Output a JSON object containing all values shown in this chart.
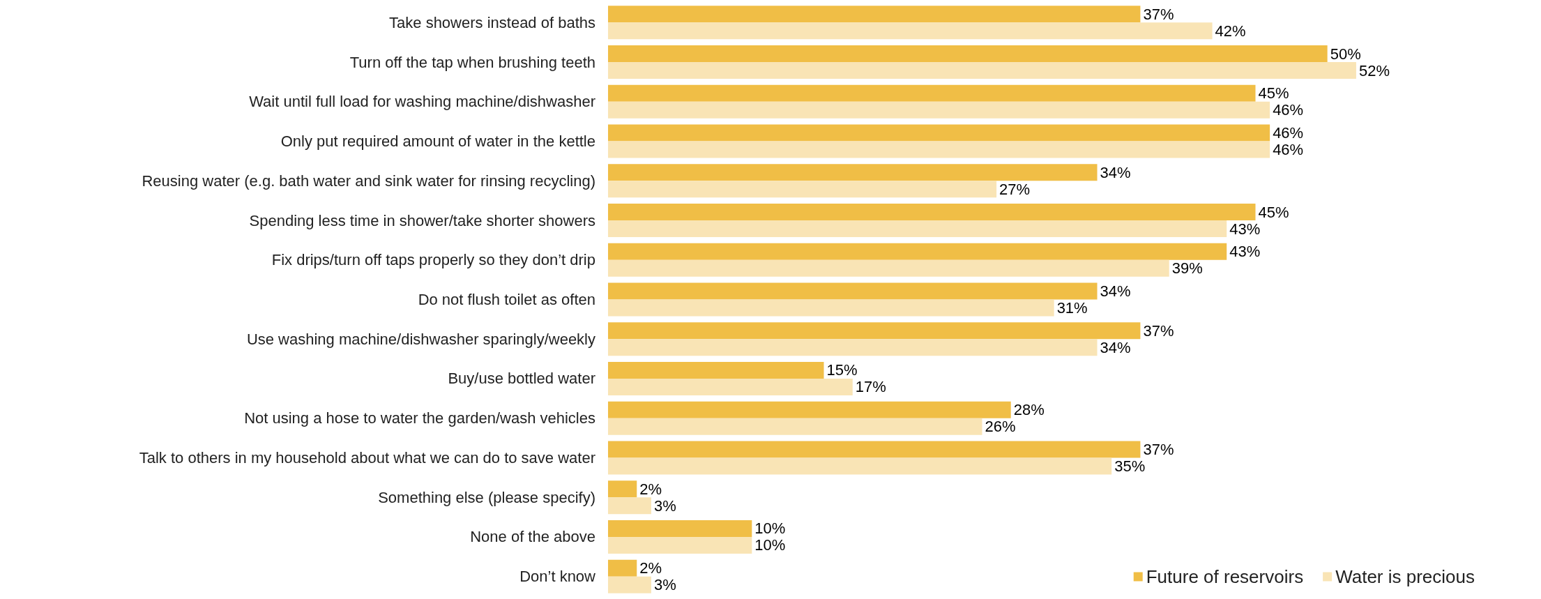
{
  "chart_data": {
    "type": "bar",
    "orientation": "horizontal",
    "categories": [
      "Take showers instead of baths",
      "Turn off the tap when brushing teeth",
      "Wait until full load for washing machine/dishwasher",
      "Only put required amount of water in the kettle",
      "Reusing water (e.g. bath water and sink water for rinsing recycling)",
      "Spending less time in shower/take shorter showers",
      "Fix drips/turn off taps properly so they don’t drip",
      "Do not flush toilet as often",
      "Use washing machine/dishwasher sparingly/weekly",
      "Buy/use bottled water",
      "Not using a hose to water the garden/wash vehicles",
      "Talk to others in my household about what we can do to save water",
      "Something else (please specify)",
      "None of the above",
      "Don’t know"
    ],
    "series": [
      {
        "name": "Future of reservoirs",
        "color": "#f0be46",
        "values": [
          37,
          50,
          45,
          46,
          34,
          45,
          43,
          34,
          37,
          15,
          28,
          37,
          2,
          10,
          2
        ],
        "value_labels": [
          "37%",
          "50%",
          "45%",
          "46%",
          "34%",
          "45%",
          "43%",
          "34%",
          "37%",
          "15%",
          "28%",
          "37%",
          "2%",
          "10%",
          "2%"
        ]
      },
      {
        "name": "Water is precious",
        "color": "#f9e4b5",
        "values": [
          42,
          52,
          46,
          46,
          27,
          43,
          39,
          31,
          34,
          17,
          26,
          35,
          3,
          10,
          3
        ],
        "value_labels": [
          "42%",
          "52%",
          "46%",
          "46%",
          "27%",
          "43%",
          "39%",
          "31%",
          "34%",
          "17%",
          "26%",
          "35%",
          "3%",
          "10%",
          "3%"
        ]
      }
    ],
    "legend": "bottom right"
  }
}
